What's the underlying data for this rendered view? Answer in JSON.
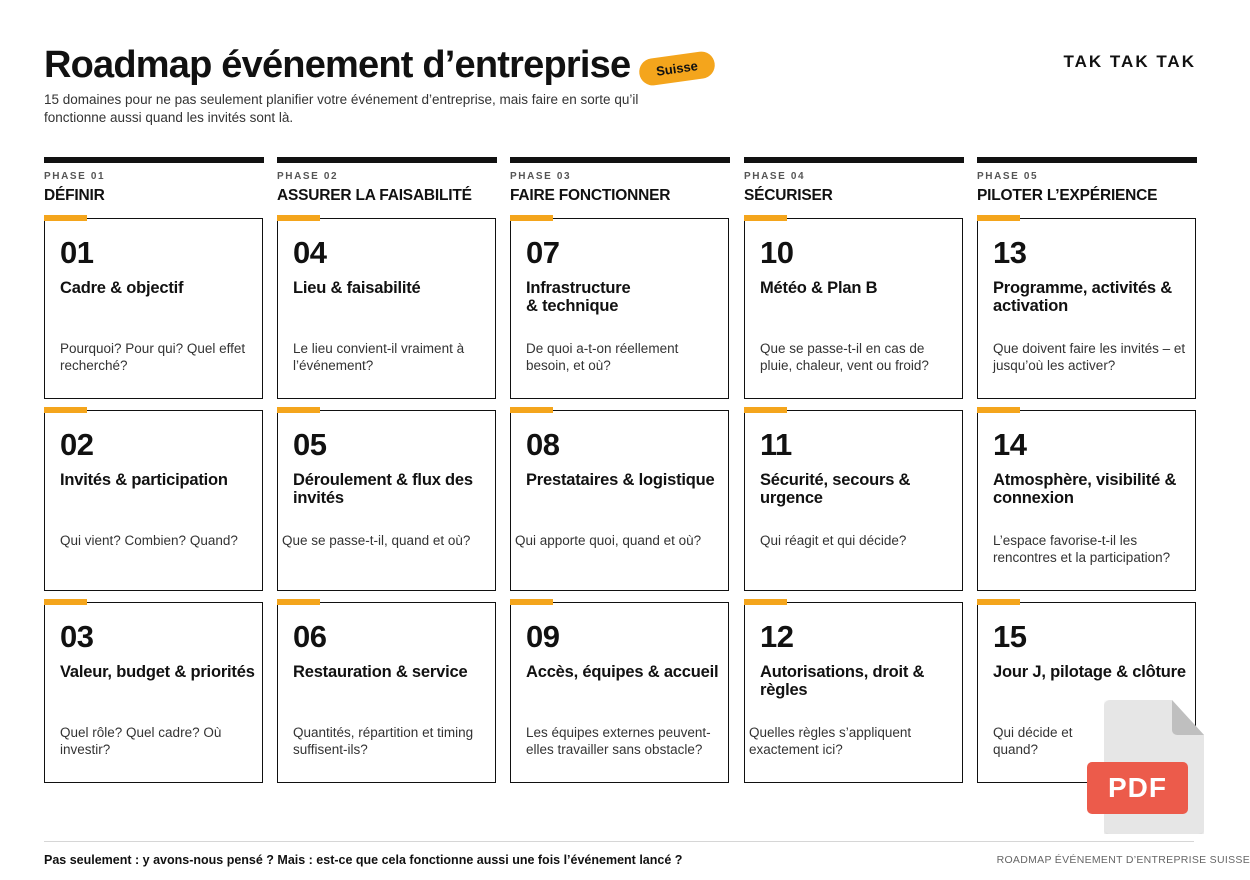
{
  "header": {
    "title": "Roadmap événement d’entreprise",
    "badge": "Suisse",
    "brand": "TAK TAK TAK",
    "subtitle": "15 domaines pour ne pas seulement planifier votre événement d’entreprise, mais faire en sorte qu’il fonctionne aussi quand les invités sont là."
  },
  "colors": {
    "accent": "#f4a51c",
    "ink": "#111111",
    "pdf_red": "#ec5b4b"
  },
  "phases": [
    {
      "num": "PHASE 01",
      "name": "DÉFINIR"
    },
    {
      "num": "PHASE 02",
      "name": "ASSURER LA FAISABILITÉ"
    },
    {
      "num": "PHASE 03",
      "name": "FAIRE FONCTIONNER"
    },
    {
      "num": "PHASE 04",
      "name": "SÉCURISER"
    },
    {
      "num": "PHASE 05",
      "name": "PILOTER L’EXPÉRIENCE"
    }
  ],
  "cards": [
    {
      "num": "01",
      "title": "Cadre & objectif",
      "question": "Pourquoi? Pour qui? Quel effet recherché?"
    },
    {
      "num": "02",
      "title": "Invités & participation",
      "question": "Qui vient? Combien? Quand?"
    },
    {
      "num": "03",
      "title": "Valeur, budget & priorités",
      "question": "Quel rôle? Quel cadre? Où investir?"
    },
    {
      "num": "04",
      "title": "Lieu & faisabilité",
      "question": "Le lieu convient-il vraiment à l’événement?"
    },
    {
      "num": "05",
      "title": "Déroulement & flux des invités",
      "question": "Que se passe-t-il, quand et où?"
    },
    {
      "num": "06",
      "title": "Restauration & service",
      "question": "Quantités, répartition et timing suffisent-ils?"
    },
    {
      "num": "07",
      "title": "Infrastructure\n& technique",
      "question": "De quoi a-t-on réellement besoin, et où?"
    },
    {
      "num": "08",
      "title": "Prestataires & logistique",
      "question": "Qui apporte quoi, quand et où?"
    },
    {
      "num": "09",
      "title": "Accès, équipes & accueil",
      "question": "Les équipes externes peuvent-elles travailler sans obstacle?"
    },
    {
      "num": "10",
      "title": "Météo & Plan B",
      "question": "Que se passe-t-il en cas de pluie, chaleur, vent ou froid?"
    },
    {
      "num": "11",
      "title": "Sécurité, secours & urgence",
      "question": "Qui réagit et qui décide?"
    },
    {
      "num": "12",
      "title": "Autorisations, droit & règles",
      "question": "Quelles règles s’appliquent exactement ici?"
    },
    {
      "num": "13",
      "title": "Programme, activités & activation",
      "question": "Que doivent faire les invités – et jusqu’où les activer?"
    },
    {
      "num": "14",
      "title": "Atmosphère, visibilité & connexion",
      "question": "L’espace favorise-t-il les rencontres et la participation?"
    },
    {
      "num": "15",
      "title": "Jour J, pilotage & clôture",
      "question": "Qui décide et quand?"
    }
  ],
  "footer": {
    "text": "Pas seulement : y avons-nous pensé ? Mais : est-ce que cela fonctionne aussi une fois l’événement lancé ?",
    "right": "ROADMAP ÉVÉNEMENT D’ENTREPRISE SUISSE"
  },
  "pdf_icon": {
    "label": "PDF"
  }
}
